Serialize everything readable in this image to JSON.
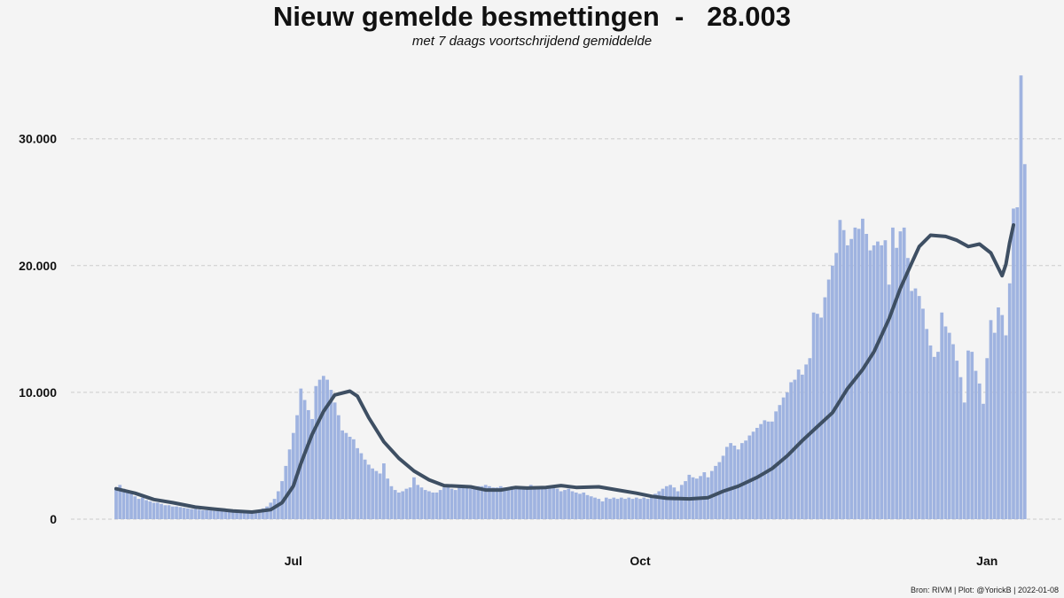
{
  "header": {
    "title": "Nieuw gemelde besmettingen  -   28.003",
    "subtitle": "met 7 daags voortschrijdend gemiddelde"
  },
  "footer": {
    "caption": "Bron: RIVM | Plot: @YorickB |  2022-01-08"
  },
  "colors": {
    "background": "#f4f4f4",
    "bars": "#9fb3e0",
    "average_line": "#3e4f63",
    "grid": "#cccccc"
  },
  "chart_data": {
    "type": "bar",
    "title": "Nieuw gemelde besmettingen  -   28.003",
    "subtitle": "met 7 daags voortschrijdend gemiddelde",
    "xlabel": "",
    "ylabel": "",
    "x_start": "2021-05-15",
    "x_end": "2022-01-08",
    "xticks": [
      {
        "date": "2021-07-01",
        "label": "Jul"
      },
      {
        "date": "2021-10-01",
        "label": "Oct"
      },
      {
        "date": "2022-01-01",
        "label": "Jan"
      }
    ],
    "ylim": [
      0,
      35500
    ],
    "yticks": [
      {
        "value": 0,
        "label": "0"
      },
      {
        "value": 10000,
        "label": "10.000"
      },
      {
        "value": 20000,
        "label": "20.000"
      },
      {
        "value": 30000,
        "label": "30.000"
      }
    ],
    "grid": "horizontal dashed",
    "legend": "none",
    "series": [
      {
        "role": "daily",
        "style": "bars",
        "values": [
          2500,
          2700,
          2400,
          2300,
          2000,
          1800,
          1600,
          1700,
          1500,
          1400,
          1300,
          1300,
          1200,
          1100,
          1100,
          1000,
          1000,
          950,
          900,
          850,
          800,
          800,
          750,
          700,
          700,
          680,
          650,
          650,
          620,
          600,
          600,
          580,
          560,
          560,
          550,
          560,
          600,
          620,
          700,
          850,
          1000,
          1300,
          1600,
          2200,
          3000,
          4200,
          5500,
          6800,
          8200,
          10300,
          9400,
          8600,
          7900,
          10500,
          11000,
          11300,
          11000,
          10200,
          9200,
          8200,
          7000,
          6800,
          6500,
          6300,
          5600,
          5200,
          4700,
          4300,
          4000,
          3800,
          3600,
          4400,
          3200,
          2600,
          2300,
          2100,
          2200,
          2400,
          2500,
          3300,
          2700,
          2500,
          2300,
          2200,
          2100,
          2100,
          2300,
          2500,
          2600,
          2400,
          2300,
          2500,
          2700,
          2600,
          2400,
          2500,
          2600,
          2600,
          2700,
          2600,
          2500,
          2500,
          2600,
          2500,
          2400,
          2600,
          2500,
          2500,
          2400,
          2500,
          2700,
          2600,
          2500,
          2400,
          2500,
          2600,
          2500,
          2400,
          2200,
          2300,
          2400,
          2200,
          2100,
          2000,
          2100,
          1900,
          1800,
          1700,
          1600,
          1400,
          1700,
          1600,
          1700,
          1600,
          1700,
          1600,
          1700,
          1600,
          1700,
          1600,
          1700,
          1600,
          1800,
          2000,
          2200,
          2400,
          2600,
          2700,
          2500,
          2200,
          2700,
          3000,
          3500,
          3300,
          3200,
          3400,
          3700,
          3300,
          3800,
          4200,
          4500,
          5000,
          5700,
          6000,
          5800,
          5500,
          6000,
          6200,
          6600,
          6900,
          7200,
          7500,
          7800,
          7700,
          7700,
          8500,
          9000,
          9600,
          10000,
          10800,
          11000,
          11800,
          11400,
          12200,
          12700,
          16300,
          16200,
          15900,
          17500,
          18900,
          20000,
          21000,
          23600,
          22800,
          21600,
          22100,
          23000,
          22900,
          23700,
          22500,
          21200,
          21600,
          21900,
          21600,
          22000,
          18500,
          23000,
          21400,
          22700,
          23000,
          20600,
          18000,
          18200,
          17600,
          16600,
          15000,
          13700,
          12800,
          13200,
          16300,
          15200,
          14700,
          13800,
          12500,
          11200,
          9200,
          13300,
          13200,
          11700,
          10700,
          9100,
          12700,
          15700,
          14700,
          16700,
          16100,
          14500,
          18600,
          24500,
          24600,
          35000,
          28003
        ]
      },
      {
        "role": "average",
        "style": "line",
        "points": [
          {
            "date": "2021-05-15",
            "value": 2400
          },
          {
            "date": "2021-05-20",
            "value": 2050
          },
          {
            "date": "2021-05-25",
            "value": 1550
          },
          {
            "date": "2021-05-30",
            "value": 1300
          },
          {
            "date": "2021-06-05",
            "value": 950
          },
          {
            "date": "2021-06-10",
            "value": 800
          },
          {
            "date": "2021-06-15",
            "value": 650
          },
          {
            "date": "2021-06-20",
            "value": 560
          },
          {
            "date": "2021-06-25",
            "value": 750
          },
          {
            "date": "2021-06-28",
            "value": 1300
          },
          {
            "date": "2021-07-01",
            "value": 2600
          },
          {
            "date": "2021-07-03",
            "value": 4400
          },
          {
            "date": "2021-07-06",
            "value": 6700
          },
          {
            "date": "2021-07-09",
            "value": 8500
          },
          {
            "date": "2021-07-12",
            "value": 9800
          },
          {
            "date": "2021-07-16",
            "value": 10100
          },
          {
            "date": "2021-07-18",
            "value": 9700
          },
          {
            "date": "2021-07-21",
            "value": 8000
          },
          {
            "date": "2021-07-25",
            "value": 6100
          },
          {
            "date": "2021-07-29",
            "value": 4800
          },
          {
            "date": "2021-08-02",
            "value": 3800
          },
          {
            "date": "2021-08-06",
            "value": 3100
          },
          {
            "date": "2021-08-10",
            "value": 2650
          },
          {
            "date": "2021-08-17",
            "value": 2550
          },
          {
            "date": "2021-08-21",
            "value": 2300
          },
          {
            "date": "2021-08-25",
            "value": 2300
          },
          {
            "date": "2021-08-29",
            "value": 2500
          },
          {
            "date": "2021-09-01",
            "value": 2450
          },
          {
            "date": "2021-09-06",
            "value": 2500
          },
          {
            "date": "2021-09-10",
            "value": 2650
          },
          {
            "date": "2021-09-14",
            "value": 2500
          },
          {
            "date": "2021-09-20",
            "value": 2550
          },
          {
            "date": "2021-09-25",
            "value": 2300
          },
          {
            "date": "2021-09-30",
            "value": 2050
          },
          {
            "date": "2021-10-04",
            "value": 1800
          },
          {
            "date": "2021-10-08",
            "value": 1650
          },
          {
            "date": "2021-10-14",
            "value": 1600
          },
          {
            "date": "2021-10-19",
            "value": 1700
          },
          {
            "date": "2021-10-23",
            "value": 2200
          },
          {
            "date": "2021-10-27",
            "value": 2600
          },
          {
            "date": "2021-11-01",
            "value": 3300
          },
          {
            "date": "2021-11-05",
            "value": 4000
          },
          {
            "date": "2021-11-09",
            "value": 5000
          },
          {
            "date": "2021-11-13",
            "value": 6200
          },
          {
            "date": "2021-11-17",
            "value": 7300
          },
          {
            "date": "2021-11-21",
            "value": 8400
          },
          {
            "date": "2021-11-25",
            "value": 10300
          },
          {
            "date": "2021-11-29",
            "value": 11800
          },
          {
            "date": "2021-12-02",
            "value": 13200
          },
          {
            "date": "2021-12-06",
            "value": 15800
          },
          {
            "date": "2021-12-09",
            "value": 18200
          },
          {
            "date": "2021-12-12",
            "value": 20200
          },
          {
            "date": "2021-12-14",
            "value": 21500
          },
          {
            "date": "2021-12-17",
            "value": 22400
          },
          {
            "date": "2021-12-21",
            "value": 22300
          },
          {
            "date": "2021-12-24",
            "value": 22000
          },
          {
            "date": "2021-12-27",
            "value": 21500
          },
          {
            "date": "2021-12-30",
            "value": 21700
          },
          {
            "date": "2022-01-02",
            "value": 21000
          },
          {
            "date": "2022-01-05",
            "value": 19200
          },
          {
            "date": "2022-01-06",
            "value": 20100
          },
          {
            "date": "2022-01-07",
            "value": 21800
          },
          {
            "date": "2022-01-08",
            "value": 23200
          }
        ]
      }
    ]
  }
}
